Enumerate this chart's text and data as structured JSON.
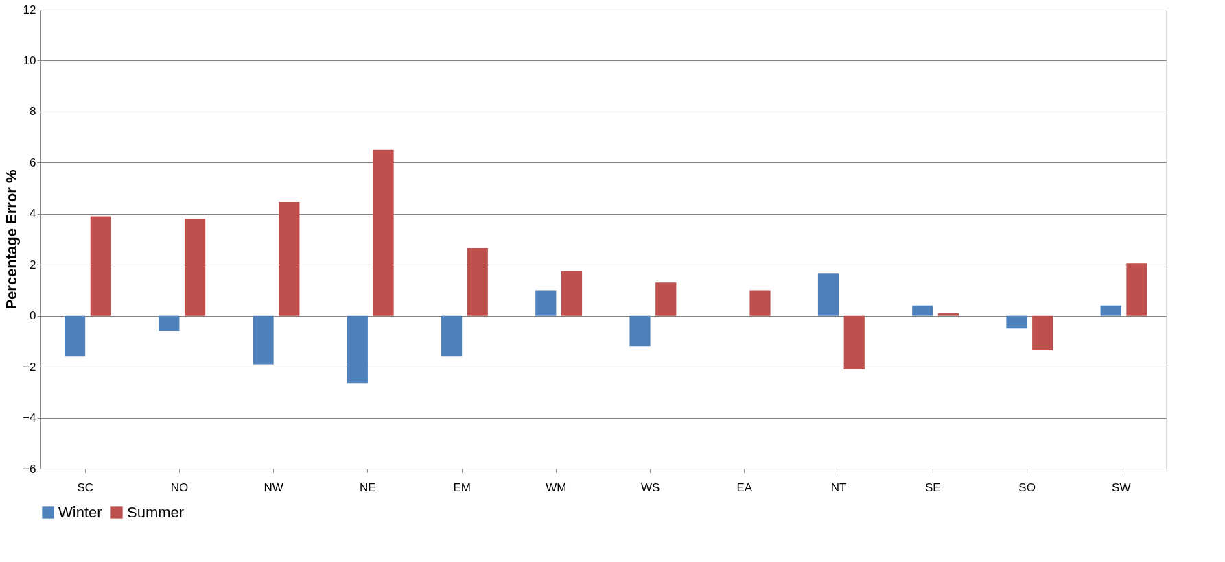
{
  "chart_data": {
    "type": "bar",
    "ylabel": "Percentage Error %",
    "categories": [
      "SC",
      "NO",
      "NW",
      "NE",
      "EM",
      "WM",
      "WS",
      "EA",
      "NT",
      "SE",
      "SO",
      "SW"
    ],
    "series": [
      {
        "name": "Winter",
        "color": "#4f81bd",
        "values": [
          -1.6,
          -0.6,
          -1.9,
          -2.65,
          -1.6,
          1.0,
          -1.2,
          0,
          1.65,
          0.4,
          -0.5,
          0.4
        ]
      },
      {
        "name": "Summer",
        "color": "#c0504d",
        "values": [
          3.9,
          3.8,
          4.45,
          6.5,
          2.65,
          1.75,
          1.3,
          1.0,
          -2.1,
          0.1,
          -1.35,
          2.05
        ]
      }
    ],
    "ylim": [
      -6,
      12
    ],
    "yticks": [
      -6,
      -4,
      -2,
      0,
      2,
      4,
      6,
      8,
      10,
      12
    ],
    "grid": "y",
    "legend": "bottom"
  }
}
